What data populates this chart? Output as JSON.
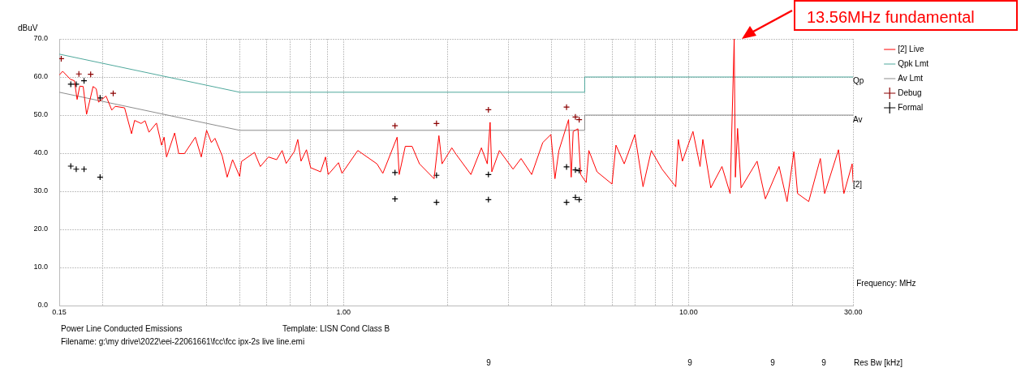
{
  "chart_data": {
    "type": "line",
    "xlabel": "Frequency: MHz",
    "ylabel": "dBuV",
    "log": "x",
    "grid": true,
    "legend": "right",
    "xlim": [
      0.15,
      30
    ],
    "xticks": [
      {
        "value": 0.15,
        "label": "0.15"
      },
      {
        "value": 0.2,
        "label": null
      },
      {
        "value": 0.3,
        "label": null
      },
      {
        "value": 0.4,
        "label": null
      },
      {
        "value": 0.5,
        "label": null
      },
      {
        "value": 0.6,
        "label": null
      },
      {
        "value": 0.7,
        "label": null
      },
      {
        "value": 0.8,
        "label": null
      },
      {
        "value": 0.9,
        "label": null
      },
      {
        "value": 1,
        "label": "1.00"
      },
      {
        "value": 2,
        "label": null
      },
      {
        "value": 3,
        "label": null
      },
      {
        "value": 4,
        "label": null
      },
      {
        "value": 5,
        "label": null
      },
      {
        "value": 6,
        "label": null
      },
      {
        "value": 7,
        "label": null
      },
      {
        "value": 8,
        "label": null
      },
      {
        "value": 9,
        "label": null
      },
      {
        "value": 10,
        "label": "10.00"
      },
      {
        "value": 20,
        "label": null
      },
      {
        "value": 30,
        "label": "30.00"
      }
    ],
    "ylim": [
      0,
      70
    ],
    "yticks": [
      {
        "value": 0,
        "label": "0.0"
      },
      {
        "value": 10,
        "label": "10.0"
      },
      {
        "value": 20,
        "label": "20.0"
      },
      {
        "value": 30,
        "label": "30.0"
      },
      {
        "value": 40,
        "label": "40.0"
      },
      {
        "value": 50,
        "label": "50.0"
      },
      {
        "value": 60,
        "label": "60.0"
      },
      {
        "value": 70,
        "label": "70.0"
      }
    ],
    "series": [
      {
        "name": "[2] Live",
        "color": "#ff0000",
        "marker": "none",
        "x": [
          0.15,
          0.1535,
          0.1616,
          0.166,
          0.169,
          0.172,
          0.176,
          0.18,
          0.188,
          0.192,
          0.195,
          0.205,
          0.213,
          0.218,
          0.232,
          0.243,
          0.248,
          0.259,
          0.266,
          0.273,
          0.287,
          0.297,
          0.302,
          0.307,
          0.324,
          0.333,
          0.346,
          0.372,
          0.387,
          0.401,
          0.414,
          0.424,
          0.445,
          0.46,
          0.477,
          0.5,
          0.506,
          0.552,
          0.574,
          0.606,
          0.64,
          0.664,
          0.682,
          0.72,
          0.737,
          0.753,
          0.781,
          0.803,
          0.858,
          0.887,
          0.903,
          0.967,
          0.99,
          1.1,
          1.25,
          1.3,
          1.43,
          1.45,
          1.51,
          1.58,
          1.66,
          1.83,
          1.89,
          1.93,
          2.06,
          2.12,
          2.34,
          2.51,
          2.61,
          2.66,
          2.69,
          2.83,
          3.1,
          3.27,
          3.51,
          3.78,
          3.99,
          4.1,
          4.21,
          4.49,
          4.57,
          4.63,
          4.78,
          4.87,
          5.05,
          5.14,
          5.43,
          6,
          6.16,
          6.51,
          6.99,
          7.38,
          7.8,
          8.38,
          9.18,
          9.34,
          9.6,
          10.3,
          10.8,
          11,
          11.6,
          12.5,
          13.2,
          13.56,
          13.67,
          13.87,
          14.2,
          15.8,
          16.7,
          18.3,
          19.3,
          20.2,
          20.7,
          22.3,
          24.1,
          24.8,
          27.2,
          28.2,
          29.8,
          30
        ],
        "values": [
          60.5,
          61.5,
          59.4,
          59.0,
          54.1,
          57.6,
          57.5,
          50.2,
          57.5,
          56.9,
          53.4,
          55.0,
          51.3,
          52.3,
          51.9,
          45.1,
          48.6,
          47.8,
          48.5,
          45.5,
          47.9,
          42.1,
          44.2,
          39.0,
          45.3,
          39.9,
          39.9,
          44.2,
          39.0,
          46.0,
          42.8,
          43.9,
          39.3,
          33.7,
          38.3,
          33.9,
          37.8,
          40.2,
          36.5,
          39.0,
          38.3,
          40.7,
          37.3,
          40.4,
          43.6,
          37.9,
          40.9,
          36.2,
          35.1,
          39.0,
          34.4,
          37.5,
          34.7,
          40.7,
          37.2,
          34.7,
          44.2,
          34.4,
          41.8,
          41.8,
          37.2,
          33.3,
          44.6,
          37.2,
          41.4,
          39.7,
          34.4,
          41.4,
          37.2,
          48.1,
          35.1,
          40.7,
          35.8,
          38.6,
          34.4,
          42.8,
          44.9,
          33.3,
          40.7,
          48.8,
          33.7,
          45.7,
          46.4,
          34.4,
          32.3,
          40.7,
          35.1,
          31.9,
          42.1,
          37.2,
          44.9,
          31.2,
          40.7,
          35.8,
          31.2,
          43.6,
          37.9,
          45.7,
          36.5,
          43.6,
          30.9,
          36.5,
          29.4,
          70,
          33.7,
          46.5,
          30.9,
          37.9,
          28.0,
          36.5,
          27.3,
          40.4,
          29.4,
          27.3,
          38.6,
          29.4,
          40.9,
          29.4,
          37.2,
          32.3
        ]
      },
      {
        "name": "Qpk Lmt",
        "color": "#4fa89c",
        "marker": "none",
        "x": [
          0.15,
          0.5,
          5,
          5,
          30
        ],
        "values": [
          66,
          56,
          56,
          60,
          60
        ]
      },
      {
        "name": "Av Lmt",
        "color": "#8c8c8c",
        "marker": "none",
        "x": [
          0.15,
          0.5,
          5,
          5,
          30
        ],
        "values": [
          56,
          46,
          46,
          50,
          50
        ]
      },
      {
        "name": "Debug",
        "type": "scatter",
        "color": "#8b0000",
        "marker": "cross",
        "x": [
          0.152,
          0.171,
          0.185,
          0.215,
          1.41,
          1.86,
          2.63,
          4.43,
          4.7,
          4.82
        ],
        "values": [
          64.8,
          60.8,
          60.7,
          55.7,
          47.2,
          47.8,
          51.4,
          52.1,
          49.5,
          48.8
        ]
      },
      {
        "name": "Formal",
        "type": "scatter",
        "color": "#000000",
        "marker": "cross",
        "x": [
          0.162,
          0.168,
          0.177,
          0.197,
          0.162,
          0.168,
          0.177,
          0.197,
          1.41,
          1.41,
          1.86,
          1.86,
          2.63,
          2.63,
          4.43,
          4.43,
          4.7,
          4.7,
          4.82,
          4.82
        ],
        "values": [
          58.1,
          58.1,
          59.0,
          54.5,
          36.6,
          35.8,
          35.8,
          33.7,
          34.9,
          28.0,
          34.2,
          27.1,
          34.4,
          27.8,
          36.4,
          27.1,
          35.6,
          28.4,
          35.4,
          27.8
        ]
      }
    ],
    "annotations": [
      "13.56MHz fundamental",
      "Qp",
      "Av",
      "[2]",
      "Power Line Conducted Emissions",
      "Template: LISN Cond Class B",
      "Filename: g:\\my drive\\2022\\eei-22061661\\fcc\\fcc ipx-2s live line.emi",
      "Res Bw [kHz]",
      "9",
      "9",
      "9",
      "9"
    ]
  }
}
